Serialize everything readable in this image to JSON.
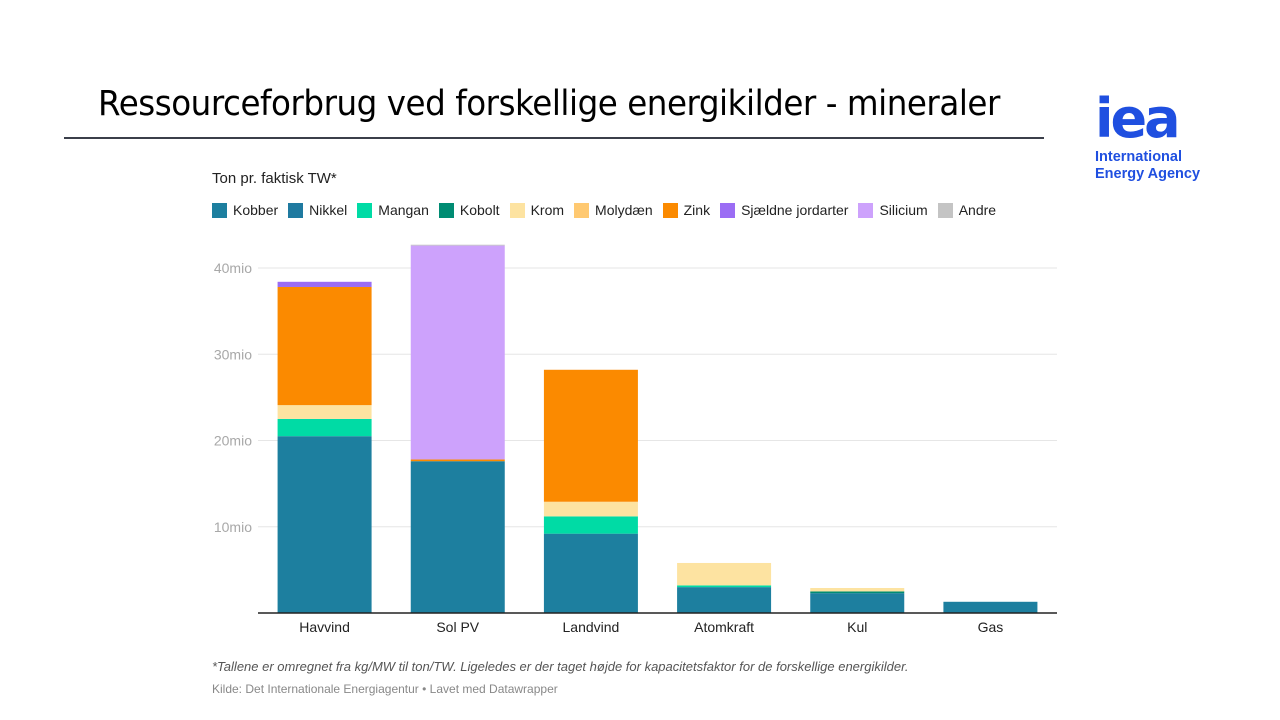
{
  "slide": {
    "title": "Ressourceforbrug ved forskellige energikilder - mineraler"
  },
  "logo": {
    "mark": "iea",
    "line1": "International",
    "line2": "Energy Agency",
    "color": "#1f4fe0"
  },
  "chart_data": {
    "type": "bar",
    "stacked": true,
    "title": "Ressourceforbrug ved forskellige energikilder - mineraler",
    "subtitle": "Ton pr. faktisk TW*",
    "xlabel": "",
    "ylabel": "",
    "ylim": [
      0,
      44
    ],
    "yticks": [
      10,
      20,
      30,
      40
    ],
    "ytick_labels": [
      "10mio",
      "20mio",
      "30mio",
      "40mio"
    ],
    "y_unit": "mio ton",
    "grid": true,
    "legend_position": "top-left",
    "categories": [
      "Havvind",
      "Sol PV",
      "Landvind",
      "Atomkraft",
      "Kul",
      "Gas"
    ],
    "series": [
      {
        "name": "Kobber",
        "color": "#1d7f9f",
        "values": [
          20.5,
          17.6,
          9.2,
          3.0,
          2.3,
          1.3
        ]
      },
      {
        "name": "Nikkel",
        "color": "#1f7aa0",
        "values": [
          0,
          0,
          0,
          0,
          0,
          0
        ]
      },
      {
        "name": "Mangan",
        "color": "#00dba5",
        "values": [
          2.0,
          0,
          2.0,
          0.2,
          0,
          0
        ]
      },
      {
        "name": "Kobolt",
        "color": "#008c73",
        "values": [
          0,
          0,
          0,
          0,
          0.2,
          0
        ]
      },
      {
        "name": "Krom",
        "color": "#fde3a1",
        "values": [
          1.6,
          0,
          1.7,
          2.6,
          0.4,
          0
        ]
      },
      {
        "name": "Molydæn",
        "color": "#ffc971",
        "values": [
          0,
          0,
          0,
          0,
          0,
          0
        ]
      },
      {
        "name": "Zink",
        "color": "#fb8a00",
        "values": [
          13.7,
          0.2,
          15.3,
          0,
          0,
          0
        ]
      },
      {
        "name": "Sjældne jordarter",
        "color": "#9b6df4",
        "values": [
          0.6,
          0,
          0,
          0,
          0,
          0
        ]
      },
      {
        "name": "Silicium",
        "color": "#cda2fc",
        "values": [
          0,
          24.8,
          0,
          0,
          0,
          0
        ]
      },
      {
        "name": "Andre",
        "color": "#c4c4c4",
        "values": [
          0,
          0.1,
          0,
          0,
          0,
          0
        ]
      }
    ],
    "note": "*Tallene er omregnet fra kg/MW til ton/TW. Ligeledes er der taget højde for kapacitetsfaktor for de forskellige energikilder.",
    "source": "Kilde: Det Internationale Energiagentur • Lavet med Datawrapper"
  }
}
